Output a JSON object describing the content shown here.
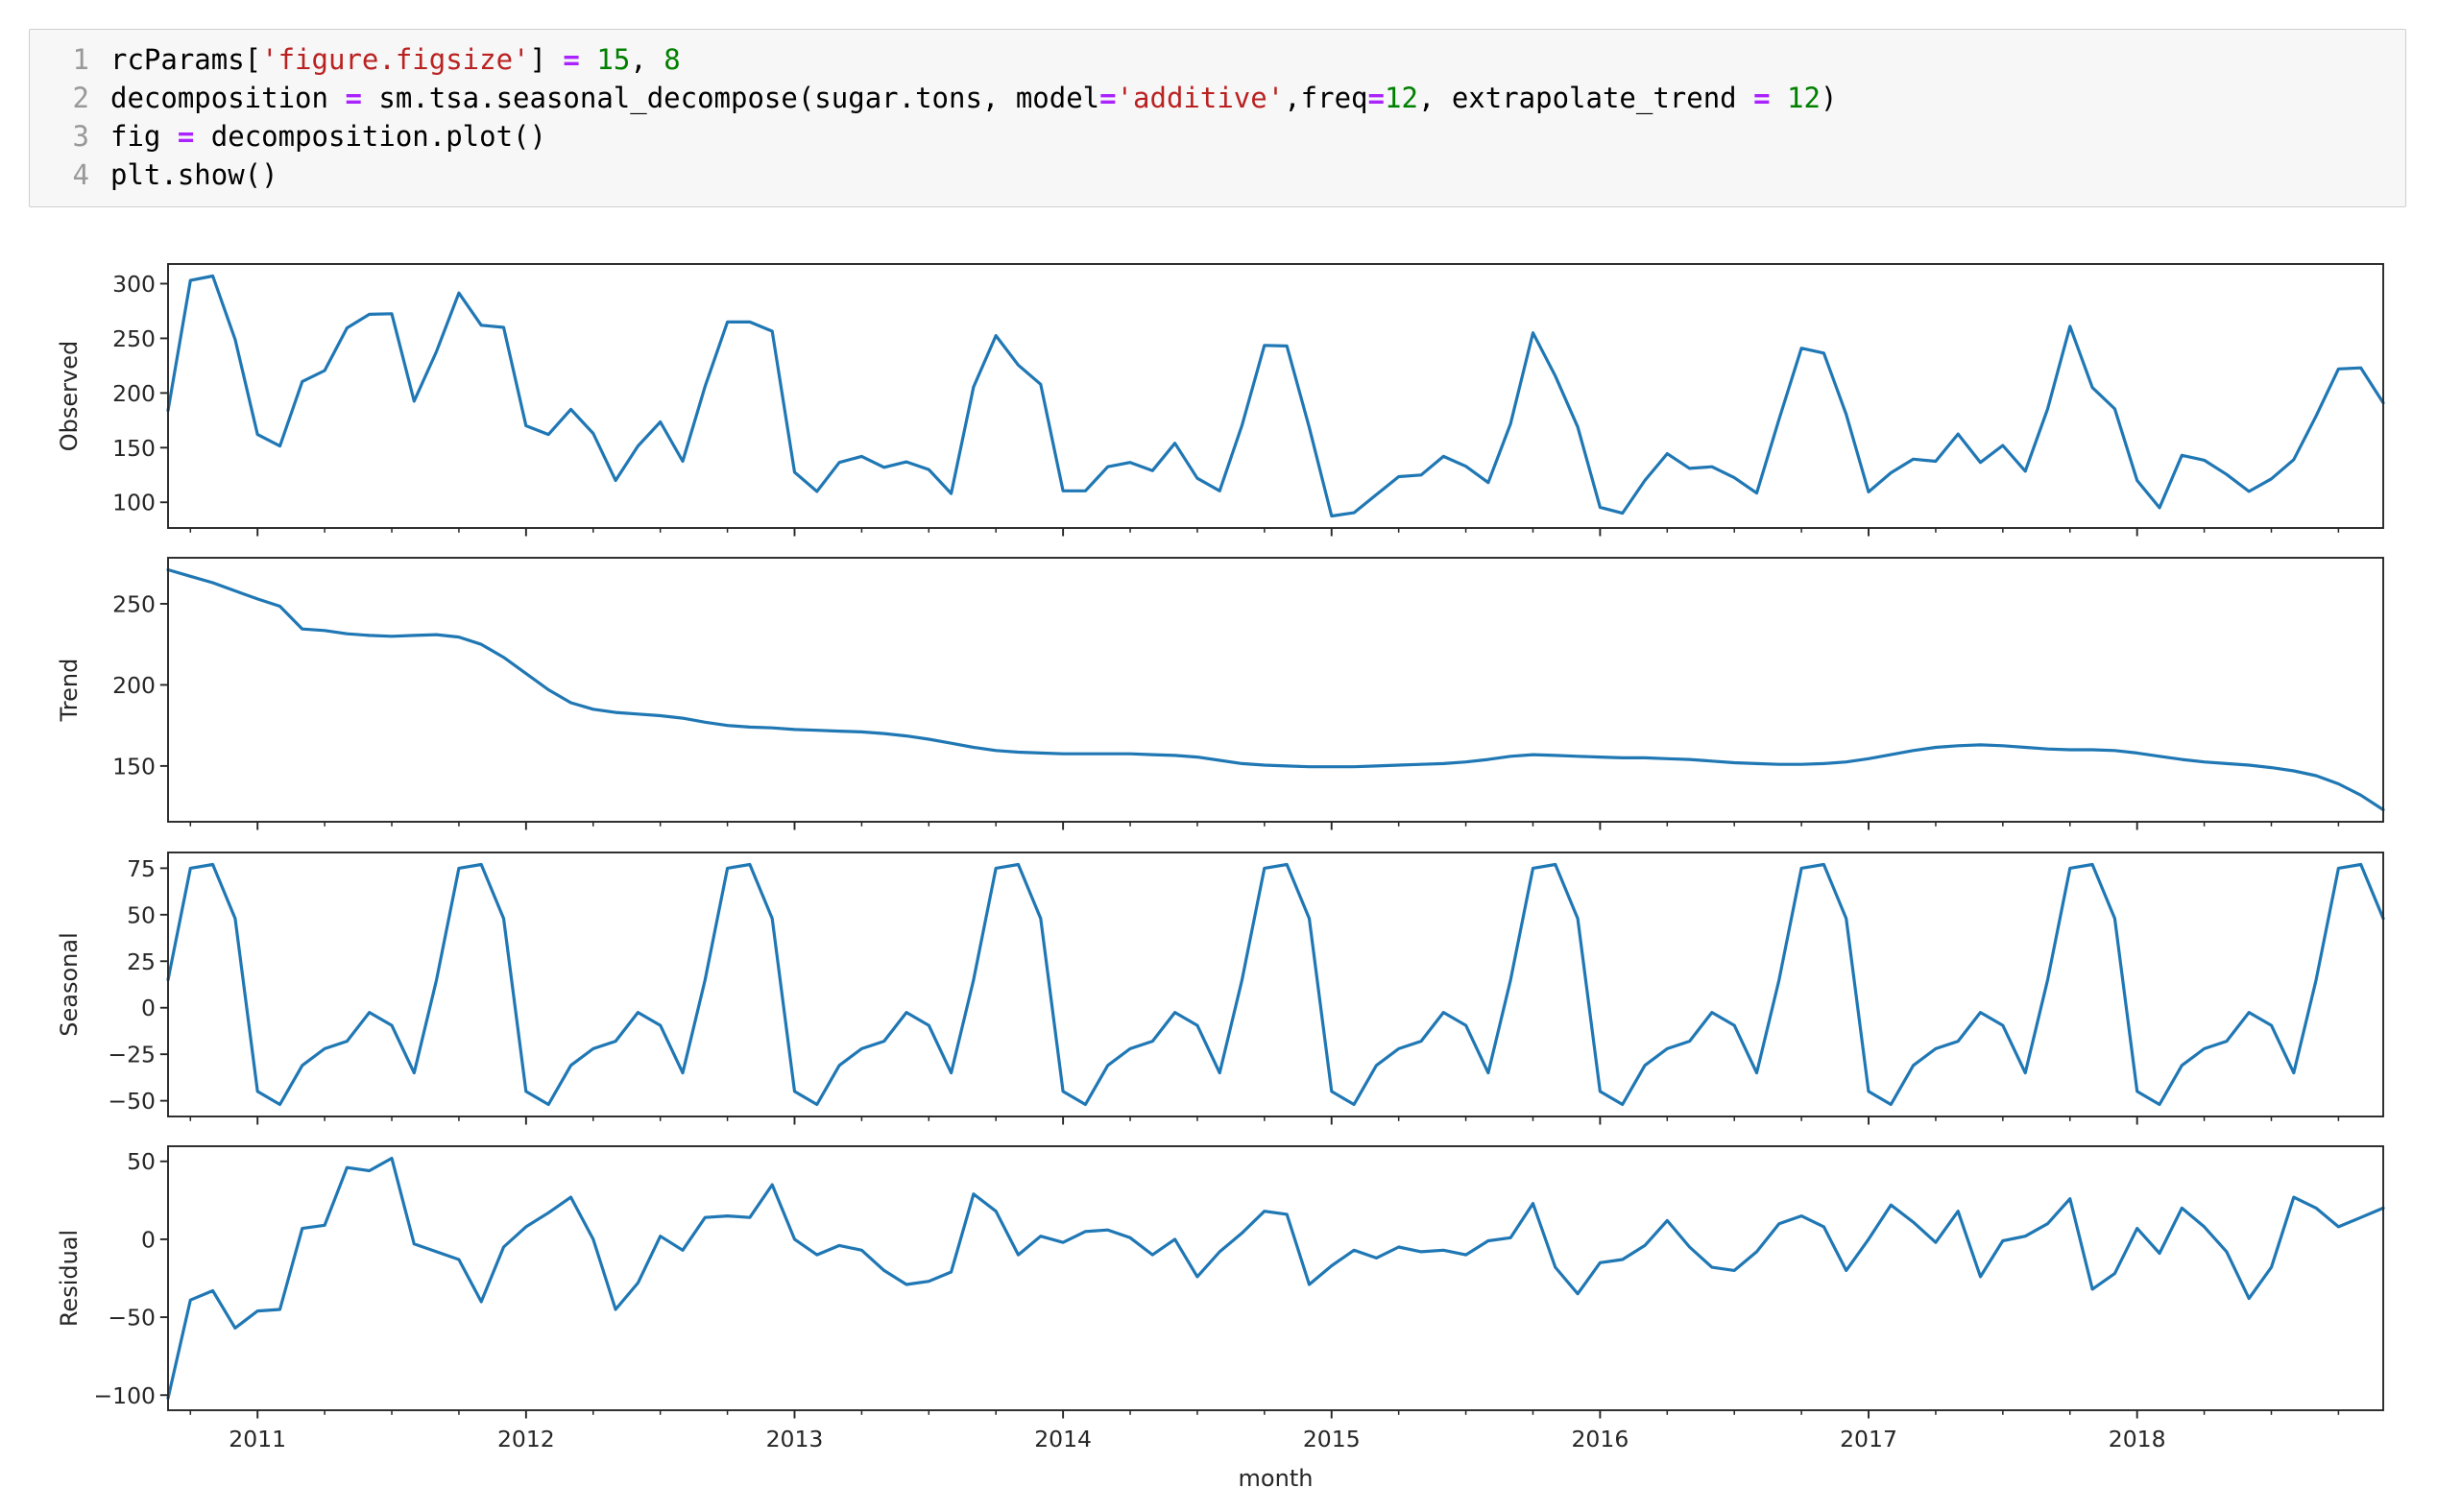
{
  "code_cell": {
    "language": "python",
    "lines": [
      {
        "no": "1",
        "segs": [
          {
            "t": "rcParams["
          },
          {
            "t": "'figure.figsize'",
            "c": "s"
          },
          {
            "t": "] "
          },
          {
            "t": "=",
            "c": "o"
          },
          {
            "t": " "
          },
          {
            "t": "15",
            "c": "n"
          },
          {
            "t": ", "
          },
          {
            "t": "8",
            "c": "n"
          }
        ]
      },
      {
        "no": "2",
        "segs": [
          {
            "t": "decomposition "
          },
          {
            "t": "=",
            "c": "o"
          },
          {
            "t": " sm.tsa.seasonal_decompose(sugar.tons, model"
          },
          {
            "t": "=",
            "c": "o"
          },
          {
            "t": "'additive'",
            "c": "s"
          },
          {
            "t": ",freq"
          },
          {
            "t": "=",
            "c": "o"
          },
          {
            "t": "12",
            "c": "n"
          },
          {
            "t": ", extrapolate_trend "
          },
          {
            "t": "=",
            "c": "o"
          },
          {
            "t": " "
          },
          {
            "t": "12",
            "c": "n"
          },
          {
            "t": ")"
          }
        ]
      },
      {
        "no": "3",
        "segs": [
          {
            "t": "fig "
          },
          {
            "t": "=",
            "c": "o"
          },
          {
            "t": " decomposition.plot()"
          }
        ]
      },
      {
        "no": "4",
        "segs": [
          {
            "t": "plt.show()"
          }
        ]
      }
    ]
  },
  "chart_data": {
    "type": "line",
    "xlabel": "month",
    "x_start": "2010-09",
    "x_end": "2018-12",
    "x_freq": "monthly",
    "n_points": 100,
    "line_color": "#1f77b4",
    "axis_color": "#262626",
    "x_major_ticks": [
      {
        "label": "2011",
        "index": 4
      },
      {
        "label": "2012",
        "index": 16
      },
      {
        "label": "2013",
        "index": 28
      },
      {
        "label": "2014",
        "index": 40
      },
      {
        "label": "2015",
        "index": 52
      },
      {
        "label": "2016",
        "index": 64
      },
      {
        "label": "2017",
        "index": 76
      },
      {
        "label": "2018",
        "index": 88
      }
    ],
    "x_minor_tick_indices": [
      1,
      7,
      10,
      13,
      19,
      22,
      25,
      31,
      34,
      37,
      43,
      46,
      49,
      55,
      58,
      61,
      67,
      70,
      73,
      79,
      82,
      85,
      91,
      94,
      97
    ],
    "panels": [
      {
        "name": "observed",
        "ylabel": "Observed",
        "ylim": [
          76.5,
          318.0
        ],
        "yticks": [
          100,
          150,
          200,
          250,
          300
        ],
        "values": [
          184,
          303,
          307,
          249,
          162,
          151.5,
          210.5,
          220.5,
          259.5,
          272,
          272.5,
          192.5,
          238,
          291.5,
          262,
          260,
          170,
          162,
          185,
          163,
          120,
          151.5,
          173.5,
          137.5,
          206,
          265,
          265,
          256.5,
          127.5,
          110,
          136.5,
          142,
          132,
          137,
          130,
          108,
          205.5,
          252.5,
          225.5,
          208,
          110.5,
          110.5,
          132.5,
          136.5,
          129,
          154,
          122,
          110.5,
          170.5,
          243.5,
          243,
          168.5,
          87.5,
          90.5,
          107,
          123.5,
          125,
          142,
          133,
          118,
          172,
          255,
          215.5,
          169,
          95.5,
          90,
          120,
          144.5,
          131,
          132.5,
          122.5,
          108.5,
          176,
          241,
          236.5,
          180.5,
          109.5,
          127,
          139.5,
          137.5,
          162.5,
          136.5,
          152,
          128.5,
          185.5,
          261,
          205,
          185.5,
          120,
          95,
          143,
          138.5,
          125.5,
          110,
          121.5,
          139,
          179,
          222,
          223,
          191
        ]
      },
      {
        "name": "trend",
        "ylabel": "Trend",
        "ylim": [
          115.6,
          278.4
        ],
        "yticks": [
          150,
          200,
          250
        ],
        "values": [
          271,
          267,
          263,
          258,
          253,
          248.5,
          234.5,
          233.5,
          231.5,
          230.5,
          230,
          230.5,
          231,
          229.5,
          225,
          217,
          207,
          197,
          189,
          185,
          183,
          182,
          181,
          179.5,
          177,
          175,
          174,
          173.5,
          172.5,
          172,
          171.5,
          171,
          170,
          168.5,
          166.5,
          164,
          161.5,
          159.5,
          158.5,
          158,
          157.5,
          157.5,
          157.5,
          157.5,
          157,
          156.5,
          155.5,
          153.5,
          151.5,
          150.5,
          150,
          149.5,
          149.5,
          149.5,
          150,
          150.5,
          151,
          151.5,
          152.5,
          154,
          156,
          157,
          156.5,
          156,
          155.5,
          155,
          155,
          154.5,
          154,
          153,
          152,
          151.5,
          151,
          151,
          151.5,
          152.5,
          154.5,
          157,
          159.5,
          161.5,
          162.5,
          163,
          162.5,
          161.5,
          160.5,
          160,
          160,
          159.5,
          158,
          156,
          154,
          152.5,
          151.5,
          150.5,
          149,
          147,
          144,
          139,
          132,
          123
        ]
      },
      {
        "name": "seasonal",
        "ylabel": "Seasonal",
        "ylim": [
          -58.45,
          83.45
        ],
        "yticks": [
          -50,
          -25,
          0,
          25,
          50,
          75
        ],
        "values": [
          15,
          75,
          77,
          48,
          -45,
          -52,
          -31,
          -22,
          -18,
          -2.5,
          -9.5,
          -35,
          15,
          75,
          77,
          48,
          -45,
          -52,
          -31,
          -22,
          -18,
          -2.5,
          -9.5,
          -35,
          15,
          75,
          77,
          48,
          -45,
          -52,
          -31,
          -22,
          -18,
          -2.5,
          -9.5,
          -35,
          15,
          75,
          77,
          48,
          -45,
          -52,
          -31,
          -22,
          -18,
          -2.5,
          -9.5,
          -35,
          15,
          75,
          77,
          48,
          -45,
          -52,
          -31,
          -22,
          -18,
          -2.5,
          -9.5,
          -35,
          15,
          75,
          77,
          48,
          -45,
          -52,
          -31,
          -22,
          -18,
          -2.5,
          -9.5,
          -35,
          15,
          75,
          77,
          48,
          -45,
          -52,
          -31,
          -22,
          -18,
          -2.5,
          -9.5,
          -35,
          15,
          75,
          77,
          48,
          -45,
          -52,
          -31,
          -22,
          -18,
          -2.5,
          -9.5,
          -35,
          15,
          75,
          77,
          48
        ]
      },
      {
        "name": "residual",
        "ylabel": "Residual",
        "ylim": [
          -109.7,
          59.7
        ],
        "yticks": [
          -100,
          -50,
          0,
          50
        ],
        "values": [
          -102,
          -39,
          -33,
          -57,
          -46,
          -45,
          7,
          9,
          46,
          44,
          52,
          -3,
          -8,
          -13,
          -40,
          -5,
          8,
          17,
          27,
          0,
          -45,
          -28,
          2,
          -7,
          14,
          15,
          14,
          35,
          0,
          -10,
          -4,
          -7,
          -20,
          -29,
          -27,
          -21,
          29,
          18,
          -10,
          2,
          -2,
          5,
          6,
          1,
          -10,
          0,
          -24,
          -8,
          4,
          18,
          16,
          -29,
          -17,
          -7,
          -12,
          -5,
          -8,
          -7,
          -10,
          -1,
          1,
          23,
          -18,
          -35,
          -15,
          -13,
          -4,
          12,
          -5,
          -18,
          -20,
          -8,
          10,
          15,
          8,
          -20,
          0,
          22,
          11,
          -2,
          18,
          -24,
          -1,
          2,
          10,
          26,
          -32,
          -22,
          7,
          -9,
          20,
          8,
          -8,
          -38,
          -18,
          27,
          20,
          8,
          14,
          20
        ]
      }
    ]
  }
}
